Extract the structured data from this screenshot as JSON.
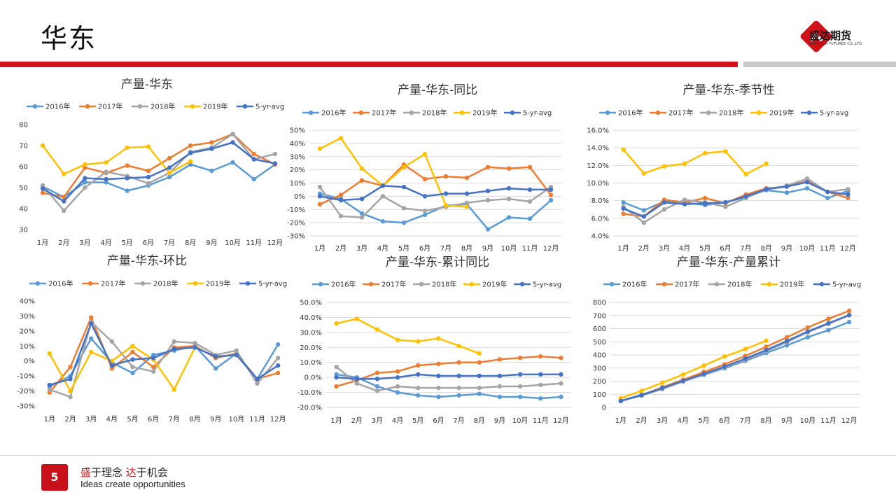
{
  "header": {
    "title": "华东",
    "logo_name": "盛达期货",
    "logo_sub": "SHENGDA FUTURES CO.,LTD."
  },
  "footer": {
    "page_number": "5",
    "slogan_cn_1": "盛",
    "slogan_cn_2": "于理念 ",
    "slogan_cn_3": "达",
    "slogan_cn_4": "于机会",
    "slogan_en": "Ideas create opportunities"
  },
  "colors": {
    "brand_red": "#d0121b",
    "s2016": "#5b9bd5",
    "s2017": "#ed7d31",
    "s2018": "#a5a5a5",
    "s2019": "#ffc000",
    "s5avg": "#4472c4"
  },
  "chart_data": [
    {
      "type": "line",
      "title": "产量-华东",
      "categories": [
        "1月",
        "2月",
        "3月",
        "4月",
        "5月",
        "6月",
        "7月",
        "8月",
        "9月",
        "10月",
        "11月",
        "12月"
      ],
      "yticks": [
        "30",
        "40",
        "50",
        "60",
        "70",
        "80"
      ],
      "ylim": [
        30,
        80
      ],
      "grid": false,
      "legend": "top",
      "series": [
        {
          "name": "2016年",
          "values": [
            50.5,
            45.5,
            52.5,
            52.5,
            48.5,
            51,
            55,
            61,
            58,
            62,
            54,
            61
          ]
        },
        {
          "name": "2017年",
          "values": [
            47.5,
            45.5,
            59.5,
            57,
            60.5,
            58,
            64,
            70,
            71.5,
            75.5,
            66,
            61
          ]
        },
        {
          "name": "2018年",
          "values": [
            51,
            39,
            50,
            57.5,
            55.5,
            52,
            57,
            67,
            69,
            75.5,
            63.5,
            66
          ]
        },
        {
          "name": "2019年",
          "values": [
            70,
            56.5,
            61,
            62,
            69,
            69.5,
            57,
            62.5,
            null,
            null,
            null,
            null
          ]
        },
        {
          "name": "5-yr-avg",
          "values": [
            49.5,
            43.5,
            54.5,
            54,
            54.5,
            55,
            59.5,
            66.5,
            68.5,
            71.5,
            63.5,
            61.5
          ]
        }
      ]
    },
    {
      "type": "line",
      "title": "产量-华东-同比",
      "categories": [
        "1月",
        "2月",
        "3月",
        "4月",
        "5月",
        "6月",
        "7月",
        "8月",
        "9月",
        "10月",
        "11月",
        "12月"
      ],
      "yticks": [
        "-30%",
        "-20%",
        "-10%",
        "0%",
        "10%",
        "20%",
        "30%",
        "40%",
        "50%"
      ],
      "ylim": [
        -30,
        50
      ],
      "grid": true,
      "legend": "top",
      "series": [
        {
          "name": "2016年",
          "values": [
            2,
            -2,
            -13,
            -19,
            -20,
            -14,
            -7,
            -6,
            -25,
            -16,
            -17,
            -3
          ]
        },
        {
          "name": "2017年",
          "values": [
            -6,
            1,
            12,
            8,
            24,
            13,
            15,
            14,
            22,
            21,
            22,
            1
          ]
        },
        {
          "name": "2018年",
          "values": [
            7,
            -15,
            -16,
            0,
            -9,
            -11,
            -8,
            -5,
            -3,
            -2,
            -4,
            7
          ]
        },
        {
          "name": "2019年",
          "values": [
            36,
            44,
            21,
            8,
            22,
            32,
            -7,
            -8,
            null,
            null,
            null,
            null
          ]
        },
        {
          "name": "5-yr-avg",
          "values": [
            0,
            -3,
            -2,
            8,
            7,
            0,
            2,
            2,
            4,
            6,
            5,
            5
          ]
        }
      ]
    },
    {
      "type": "line",
      "title": "产量-华东-季节性",
      "categories": [
        "1月",
        "2月",
        "3月",
        "4月",
        "5月",
        "6月",
        "7月",
        "8月",
        "9月",
        "10月",
        "11月",
        "12月"
      ],
      "yticks": [
        "4.0%",
        "6.0%",
        "8.0%",
        "10.0%",
        "12.0%",
        "14.0%",
        "16.0%"
      ],
      "ylim": [
        4,
        16
      ],
      "grid": true,
      "legend": "top",
      "series": [
        {
          "name": "2016年",
          "values": [
            7.8,
            6.9,
            7.9,
            7.8,
            7.5,
            7.8,
            8.4,
            9.2,
            8.9,
            9.4,
            8.3,
            9.1
          ]
        },
        {
          "name": "2017年",
          "values": [
            6.5,
            6.2,
            8.1,
            7.8,
            8.3,
            7.7,
            8.7,
            9.4,
            9.6,
            10.2,
            9.0,
            8.3
          ]
        },
        {
          "name": "2018年",
          "values": [
            7.3,
            5.5,
            7.0,
            8.1,
            7.8,
            7.3,
            8.3,
            9.3,
            9.7,
            10.5,
            9.0,
            9.3
          ]
        },
        {
          "name": "2019年",
          "values": [
            13.8,
            11.1,
            11.9,
            12.2,
            13.4,
            13.6,
            11.0,
            12.2,
            null,
            null,
            null,
            null
          ]
        },
        {
          "name": "5-yr-avg",
          "values": [
            7.1,
            6.2,
            7.8,
            7.6,
            7.7,
            7.8,
            8.5,
            9.3,
            9.6,
            10.1,
            9.0,
            8.7
          ]
        }
      ]
    },
    {
      "type": "line",
      "title": "产量-华东-环比",
      "categories": [
        "1月",
        "2月",
        "3月",
        "4月",
        "5月",
        "6月",
        "7月",
        "8月",
        "9月",
        "10月",
        "11月",
        "12月"
      ],
      "yticks": [
        "-30%",
        "-20%",
        "-10%",
        "0%",
        "10%",
        "20%",
        "30%",
        "40%"
      ],
      "ylim": [
        -30,
        40
      ],
      "grid": false,
      "legend": "top",
      "series": [
        {
          "name": "2016年",
          "values": [
            -17,
            -10,
            15,
            -1,
            -8,
            4,
            7,
            10,
            -5,
            5,
            -12,
            11
          ]
        },
        {
          "name": "2017年",
          "values": [
            -21,
            -4,
            29,
            -5,
            6,
            -4,
            9,
            10,
            2,
            5,
            -12,
            -8
          ]
        },
        {
          "name": "2018年",
          "values": [
            -19,
            -24,
            26,
            13,
            -4,
            -7,
            13,
            12,
            4,
            7,
            -15,
            2
          ]
        },
        {
          "name": "2019年",
          "values": [
            5,
            -20,
            6,
            0,
            10,
            1,
            -19,
            9,
            null,
            null,
            null,
            null
          ]
        },
        {
          "name": "5-yr-avg",
          "values": [
            -16,
            -12,
            25,
            -3,
            1,
            2,
            8,
            9,
            3,
            4,
            -12,
            -3
          ]
        }
      ]
    },
    {
      "type": "line",
      "title": "产量-华东-累计同比",
      "categories": [
        "1月",
        "2月",
        "3月",
        "4月",
        "5月",
        "6月",
        "7月",
        "8月",
        "9月",
        "10月",
        "11月",
        "12月"
      ],
      "yticks": [
        "-20.0%",
        "-10.0%",
        "0.0%",
        "10.0%",
        "20.0%",
        "30.0%",
        "40.0%",
        "50.0%"
      ],
      "ylim": [
        -20,
        50
      ],
      "grid": true,
      "legend": "top",
      "series": [
        {
          "name": "2016年",
          "values": [
            2,
            0,
            -6,
            -10,
            -12,
            -13,
            -12,
            -11,
            -13,
            -13,
            -14,
            -13
          ]
        },
        {
          "name": "2017年",
          "values": [
            -6,
            -2,
            3,
            4,
            8,
            9,
            10,
            10,
            12,
            13,
            14,
            13
          ]
        },
        {
          "name": "2018年",
          "values": [
            7,
            -4,
            -9,
            -6,
            -7,
            -7,
            -7,
            -7,
            -6,
            -6,
            -5,
            -4
          ]
        },
        {
          "name": "2019年",
          "values": [
            36,
            39,
            32,
            25,
            24,
            26,
            21,
            16,
            null,
            null,
            null,
            null
          ]
        },
        {
          "name": "5-yr-avg",
          "values": [
            0,
            -1,
            -1,
            0,
            2,
            1,
            1,
            1,
            1,
            2,
            2,
            2
          ]
        }
      ]
    },
    {
      "type": "line",
      "title": "产量-华东-产量累计",
      "categories": [
        "1月",
        "2月",
        "3月",
        "4月",
        "5月",
        "6月",
        "7月",
        "8月",
        "9月",
        "10月",
        "11月",
        "12月"
      ],
      "yticks": [
        "0",
        "100",
        "200",
        "300",
        "400",
        "500",
        "600",
        "700",
        "800"
      ],
      "ylim": [
        0,
        800
      ],
      "grid": true,
      "legend": "top",
      "series": [
        {
          "name": "2016年",
          "values": [
            50,
            96,
            148,
            200,
            248,
            299,
            355,
            415,
            473,
            535,
            589,
            650
          ]
        },
        {
          "name": "2017年",
          "values": [
            48,
            93,
            153,
            210,
            270,
            328,
            392,
            462,
            534,
            609,
            675,
            736
          ]
        },
        {
          "name": "2018年",
          "values": [
            51,
            90,
            140,
            197,
            253,
            305,
            362,
            429,
            498,
            573,
            637,
            703
          ]
        },
        {
          "name": "2019年",
          "values": [
            70,
            127,
            188,
            250,
            319,
            388,
            445,
            508,
            null,
            null,
            null,
            null
          ]
        },
        {
          "name": "5-yr-avg",
          "values": [
            49,
            93,
            148,
            202,
            256,
            311,
            371,
            437,
            506,
            578,
            641,
            703
          ]
        }
      ]
    }
  ]
}
